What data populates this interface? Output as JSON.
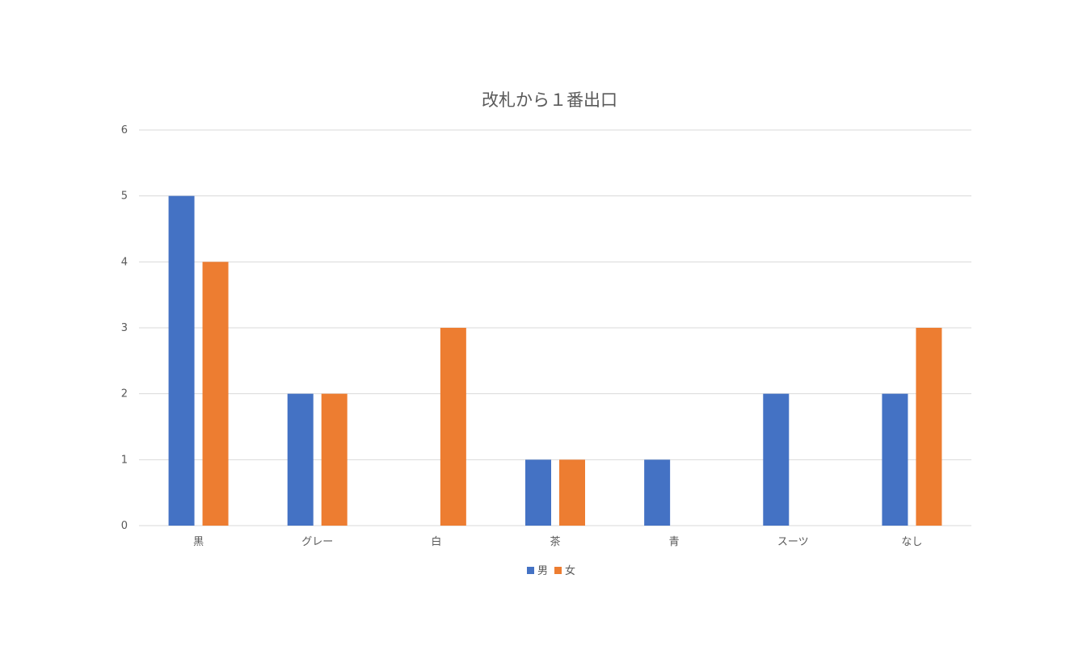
{
  "chart_data": {
    "type": "bar",
    "title": "改札から１番出口",
    "categories": [
      "黒",
      "グレー",
      "白",
      "茶",
      "青",
      "スーツ",
      "なし"
    ],
    "series": [
      {
        "name": "男",
        "color": "#4472C4",
        "values": [
          5,
          2,
          0,
          1,
          1,
          2,
          2
        ]
      },
      {
        "name": "女",
        "color": "#ED7D31",
        "values": [
          4,
          2,
          3,
          1,
          0,
          0,
          3
        ]
      }
    ],
    "ylim": [
      0,
      6
    ],
    "yticks": [
      0,
      1,
      2,
      3,
      4,
      5,
      6
    ],
    "grid": true,
    "gridColor": "#D9D9D9",
    "legend": "bottom"
  }
}
